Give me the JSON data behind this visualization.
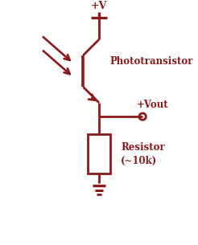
{
  "color": "#8B1A1A",
  "bg_color": "#FFFFFF",
  "fig_width": 2.46,
  "fig_height": 3.05,
  "dpi": 100,
  "label_phototransistor": "Phototransistor",
  "label_resistor": "Resistor\n(~10k)",
  "label_vplus": "+V",
  "label_vout": "+Vout",
  "xlim": [
    0,
    10
  ],
  "ylim": [
    0,
    12.4
  ]
}
